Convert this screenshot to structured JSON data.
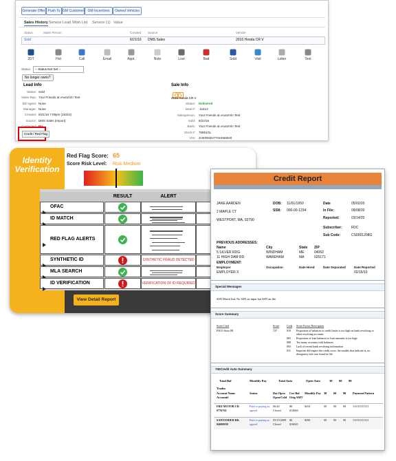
{
  "crm": {
    "buttons": [
      "Generate Offer",
      "Push To",
      "GM Customer",
      "GM Incentives",
      "Owned Vehicles"
    ],
    "tabs": [
      "Sales History",
      "Service Lead",
      "Wish List",
      "Service (1)",
      "Value"
    ],
    "table_headers": [
      "Status",
      "Sales Person",
      "Created",
      "Source",
      "Vehicle"
    ],
    "table_row": {
      "status": "Sold",
      "created": "6/21/16",
      "source": "DMS Sales",
      "vehicle": "2016 Honda CR V"
    },
    "actions": [
      "2DT",
      "Hot",
      "Call",
      "Email",
      "Appt.",
      "Note",
      "Lost",
      "Bad",
      "Sold",
      "Visit",
      "Letter",
      "Text"
    ],
    "status_label": "Status:",
    "status_select": "-- Status Not Set --",
    "owns_button": "No longer owns?",
    "lead_info": {
      "title": "Lead Info",
      "fields": [
        [
          "Status:",
          "Sold"
        ],
        [
          "Sales Rep:",
          "Your Friends at vAuto/Vin Test"
        ],
        [
          "BD Agent:",
          "None"
        ],
        [
          "Manager:",
          "None"
        ],
        [
          "Created:",
          "6/21/16 7:09pm (16310)"
        ],
        [
          "Source:",
          "DMS Sales (Import)"
        ],
        [
          "Contacted:",
          "No"
        ]
      ]
    },
    "sale_info": {
      "title": "Sale Info",
      "vehicle": "2016 Honda CR V",
      "fields": [
        [
          "Status:",
          "Delivered"
        ],
        [
          "Deal #:",
          "-11613"
        ],
        [
          "Salesperson:",
          "Your Friends at vAuto/Vin Test"
        ],
        [
          "Sold:",
          "6/22/16"
        ],
        [
          "Bank:",
          "Your Friends at vAuto/Vin Test"
        ],
        [
          "Stock #:",
          "76651GL"
        ],
        [
          "VIN:",
          "2HKRM4H77GH669040"
        ]
      ]
    },
    "credit_button": "Credit / Red Flag"
  },
  "identity": {
    "title": "Identity Verification",
    "score_label": "Red Flag Score:",
    "score": 65,
    "risk_label": "Score Risk Level:",
    "risk": "Risk Medium",
    "headers": [
      "RESULT",
      "ALERT"
    ],
    "rows": [
      "OFAC",
      "ID MATCH",
      "RED FLAG ALERTS",
      "SYNTHETIC ID",
      "MLA SEARCH",
      "ID VERIFICATION"
    ],
    "alerts": {
      "synthetic": "SYNTHETIC FRAUD DETECTED",
      "verification": "VERIFICATION OF ID REQUIRED"
    },
    "button": "View Detail Report"
  },
  "credit_report": {
    "title": "Credit Report",
    "name_lines": [
      "JANE AARDEN",
      "2 MAPLE CT",
      "WESTPORT, MA, 02790"
    ],
    "ids": [
      [
        "DOB:",
        "11/01/1950"
      ],
      [
        "SSN:",
        "000-00-1234"
      ]
    ],
    "file": [
      [
        "Date",
        "05/02/20"
      ],
      [
        "In File:",
        "09/08/20"
      ],
      [
        "Reported:",
        "03/14/20"
      ],
      [
        "Subscriber:",
        "FDC"
      ],
      [
        "Sub Code:",
        "CS0001208G"
      ]
    ],
    "prev_title": "PREVIOUS ADDRESSES:",
    "prev_headers": [
      "Name",
      "City",
      "State",
      "ZIP"
    ],
    "prev_rows": [
      [
        "5 SILVER RDG",
        "WINDHAM",
        "ME",
        "04062"
      ],
      [
        "11 HIGH DAM RD",
        "WAREHAM",
        "MA",
        "025171"
      ]
    ],
    "emp_title": "EMPLOYMENT:",
    "emp_headers": [
      "Employer",
      "Occupation",
      "Date Hired",
      "Date Separated",
      "Date Reported"
    ],
    "emp_row": {
      "employer": "EMPLOYER X",
      "reported": "02/15/10"
    },
    "special_title": "Special Messages",
    "special_text": "SSN Match Ind: No SSN on input but SSN on file",
    "score_title": "Score Summary",
    "score_headers": [
      "Score Card",
      "Score",
      "Code",
      "Score Factor Description"
    ],
    "score_card": "FICO Auto 08",
    "score_value": "727",
    "factor_codes": [
      "010",
      "005",
      "008",
      "003",
      "011"
    ],
    "factors": [
      "Proportion of balances to credit limits is too high on bank revolving or other revolving accounts",
      "Proportion of loan balances to loan amounts is too high",
      "Too many accounts with balances",
      "Lack of recent bank revolving information",
      "Inquiries did impact the credit score, the models that indicate is, no derogatory info was found in file"
    ],
    "auto_title": "700Credit Auto Summary",
    "auto_headers": [
      "Total Bal",
      "Monthly Pay",
      "Total Auto",
      "Open Auto",
      "30",
      "60",
      "90"
    ],
    "trades_title": "Trades",
    "trade_headers": [
      [
        "Account Name",
        "Account#"
      ],
      [
        "Status"
      ],
      [
        "Dat Opcn",
        "Open/Cold"
      ],
      [
        "Cur Bal",
        "Orig AMT"
      ],
      [
        "Monthly Pay"
      ],
      [
        "30"
      ],
      [
        "60"
      ],
      [
        "90"
      ],
      [
        "Payment Pattern"
      ]
    ],
    "trades": [
      [
        [
          "FRD MOTOR CR",
          "0776761"
        ],
        [
          "Paid or paying as",
          "agreed"
        ],
        [
          "06/20",
          "Closed"
        ],
        [
          "$0",
          "$12666"
        ],
        [
          "$252"
        ],
        [
          "00"
        ],
        [
          "00"
        ],
        [
          "00"
        ],
        [
          "111111111111"
        ]
      ],
      [
        [
          "SANTANDER BK",
          "04608058"
        ],
        [
          "Paid or paying as",
          "agreed"
        ],
        [
          "05/15/2009",
          "Closed"
        ],
        [
          "$0",
          "$16045"
        ],
        [
          "$296"
        ],
        [
          "00"
        ],
        [
          "00"
        ],
        [
          "00"
        ],
        [
          "111111111111"
        ]
      ]
    ]
  }
}
